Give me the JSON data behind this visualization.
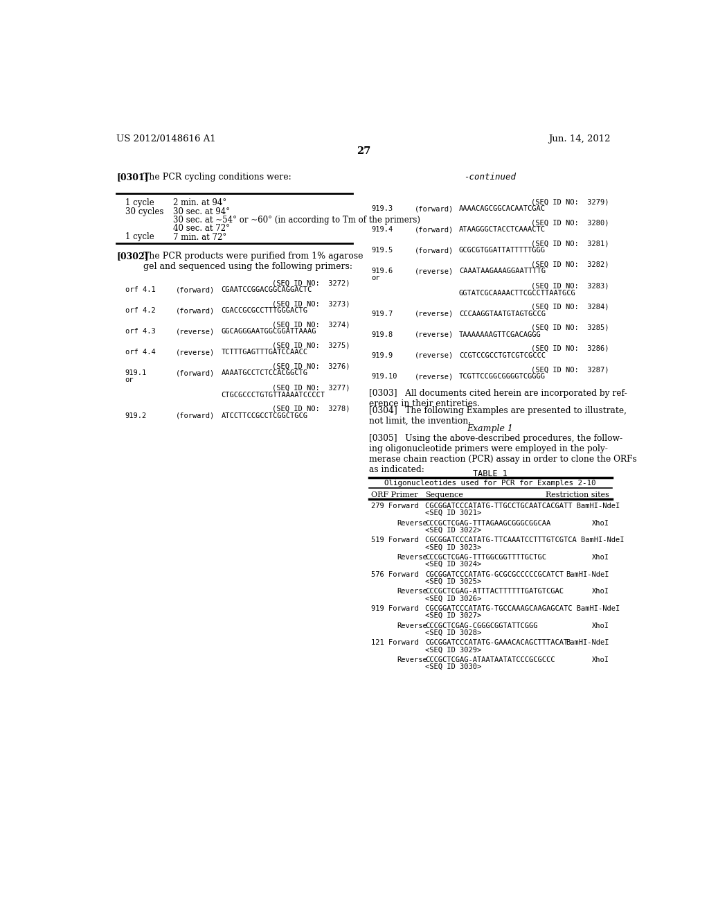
{
  "bg_color": "#ffffff",
  "header_left": "US 2012/0148616 A1",
  "header_right": "Jun. 14, 2012",
  "page_number": "27",
  "left_col": {
    "table_rows": [
      [
        "1 cycle",
        "2 min. at 94°"
      ],
      [
        "30 cycles",
        "30 sec. at 94°"
      ],
      [
        "",
        "30 sec. at ~54° or ~60° (in according to Tm of the primers)"
      ],
      [
        "",
        "40 sec. at 72°"
      ],
      [
        "1 cycle",
        "7 min. at 72°"
      ]
    ],
    "seqs_left": [
      {
        "id": "orf 4.1",
        "dir": "(forward)",
        "seq_id_no": "3272",
        "seq": "CGAATCCGGACGGCAGGACTC",
        "extra_id": ""
      },
      {
        "id": "orf 4.2",
        "dir": "(forward)",
        "seq_id_no": "3273",
        "seq": "CGACCGCGCCTTTGGGACTG",
        "extra_id": ""
      },
      {
        "id": "orf 4.3",
        "dir": "(reverse)",
        "seq_id_no": "3274",
        "seq": "GGCAGGGAATGGCGGATTAAAG",
        "extra_id": ""
      },
      {
        "id": "orf 4.4",
        "dir": "(reverse)",
        "seq_id_no": "3275",
        "seq": "TCTTTGAGTTTGATCCAACC",
        "extra_id": ""
      },
      {
        "id": "919.1",
        "dir": "(forward)",
        "seq_id_no": "3276",
        "seq": "AAAATGCCTCTCCACGGCTG",
        "extra_id": "or"
      },
      {
        "id": "",
        "dir": "",
        "seq_id_no": "3277",
        "seq": "CTGCGCCCTGTGTTAAAATCCCCT",
        "extra_id": ""
      },
      {
        "id": "919.2",
        "dir": "(forward)",
        "seq_id_no": "3278",
        "seq": "ATCCTTCCGCCTCGGCTGCG",
        "extra_id": ""
      }
    ]
  },
  "right_col": {
    "seqs_right": [
      {
        "id": "919.3",
        "dir": "(forward)",
        "seq_id_no": "3279",
        "seq": "AAAACAGCGGCACAATCGAC",
        "extra_id": ""
      },
      {
        "id": "919.4",
        "dir": "(forward)",
        "seq_id_no": "3280",
        "seq": "ATAAGGGCTACCTCAAACTC",
        "extra_id": ""
      },
      {
        "id": "919.5",
        "dir": "(forward)",
        "seq_id_no": "3281",
        "seq": "GCGCGTGGATTATTTTTGGG",
        "extra_id": ""
      },
      {
        "id": "919.6",
        "dir": "(reverse)",
        "seq_id_no": "3282",
        "seq": "CAAATAAGAAAGGAATTTTG",
        "extra_id": "or"
      },
      {
        "id": "",
        "dir": "",
        "seq_id_no": "3283",
        "seq": "GGTATCGCAAAACTTCGCCTTAATGCG",
        "extra_id": ""
      },
      {
        "id": "919.7",
        "dir": "(reverse)",
        "seq_id_no": "3284",
        "seq": "CCCAAGGTAATGTAGTGCCG",
        "extra_id": ""
      },
      {
        "id": "919.8",
        "dir": "(reverse)",
        "seq_id_no": "3285",
        "seq": "TAAAAAAAGTTCGACAGGG",
        "extra_id": ""
      },
      {
        "id": "919.9",
        "dir": "(reverse)",
        "seq_id_no": "3286",
        "seq": "CCGTCCGCCTGTCGTCGCCC",
        "extra_id": ""
      },
      {
        "id": "919.10",
        "dir": "(reverse)",
        "seq_id_no": "3287",
        "seq": "TCGTTCCGGCGGGGTCGGGG",
        "extra_id": ""
      }
    ],
    "table1_rows": [
      {
        "orf": "279 Forward",
        "seq": "CGCGGATCCCATATG-TTGCCTGCAATCACGATT BamHI-NdeI",
        "seq_id": "<SEQ ID 3021>",
        "restr": ""
      },
      {
        "orf": "Reverse",
        "seq": "CCCGCTCGAG-TTTAGAAGCGGGCGGCAA",
        "seq_id": "<SEQ ID 3022>",
        "restr": "XhoI"
      },
      {
        "orf": "519 Forward",
        "seq": "CGCGGATCCCATATG-TTCAAATCCTTTGTCGTCA BamHI-NdeI",
        "seq_id": "<SEQ ID 3023>",
        "restr": ""
      },
      {
        "orf": "Reverse",
        "seq": "CCCGCTCGAG-TTTGGCGGTTTTGCTGC",
        "seq_id": "<SEQ ID 3024>",
        "restr": "XhoI"
      },
      {
        "orf": "576 Forward",
        "seq": "CGCGGATCCCATATG-GCGCGCCCCCGCATCT",
        "seq_id": "<SEQ ID 3025>",
        "restr": "BamHI-NdeI"
      },
      {
        "orf": "Reverse",
        "seq": "CCCGCTCGAG-ATTTACTTTTTTGATGTCGAC",
        "seq_id": "<SEQ ID 3026>",
        "restr": "XhoI"
      },
      {
        "orf": "919 Forward",
        "seq": "CGCGGATCCCATATG-TGCCAAAGCAAGAGCATC BamHI-NdeI",
        "seq_id": "<SEQ ID 3027>",
        "restr": ""
      },
      {
        "orf": "Reverse",
        "seq": "CCCGCTCGAG-CGGGCGGTATTCGGG",
        "seq_id": "<SEQ ID 3028>",
        "restr": "XhoI"
      },
      {
        "orf": "121 Forward",
        "seq": "CGCGGATCCCATATG-GAAACACAGCTTTACAT",
        "seq_id": "<SEQ ID 3029>",
        "restr": "BamHI-NdeI"
      },
      {
        "orf": "Reverse",
        "seq": "CCCGCTCGAG-ATAATAATATCCCGCGCCC",
        "seq_id": "<SEQ ID 3030>",
        "restr": "XhoI"
      }
    ]
  }
}
